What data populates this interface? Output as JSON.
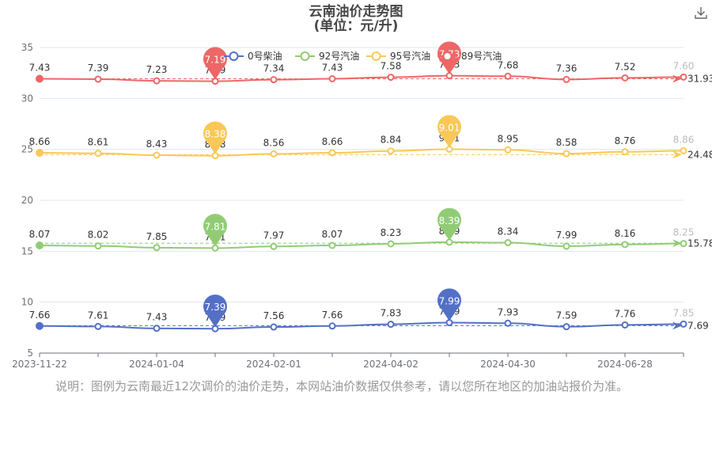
{
  "title": {
    "line1": "云南油价走势图",
    "line2": "(单位：元/升)"
  },
  "note": "说明：图例为云南最近12次调价的油价走势，本网站油价数据仅供参考，请以您所在地区的加油站报价为准。",
  "toolbox": {
    "icon": "download-icon"
  },
  "chart_data": {
    "type": "line",
    "x_tick_labels": [
      "2023-11-22",
      "2024-01-04",
      "2024-02-01",
      "2024-04-02",
      "2024-04-30",
      "2024-06-28"
    ],
    "ylim": [
      5,
      35
    ],
    "y_ticks": [
      5,
      10,
      15,
      20,
      25,
      30,
      35
    ],
    "legend_position": "top",
    "series": [
      {
        "name": "0号柴油",
        "color": "#5470c6",
        "values": [
          7.66,
          7.61,
          7.43,
          7.39,
          7.56,
          7.66,
          7.83,
          7.99,
          7.93,
          7.59,
          7.76,
          7.85
        ],
        "max": 7.99,
        "min": 7.39,
        "average": 7.69
      },
      {
        "name": "92号汽油",
        "color": "#91cc75",
        "values": [
          8.07,
          8.02,
          7.85,
          7.81,
          7.97,
          8.07,
          8.23,
          8.39,
          8.34,
          7.99,
          8.16,
          8.25
        ],
        "max": 8.39,
        "min": 7.81,
        "average": 15.78
      },
      {
        "name": "95号汽油",
        "color": "#fac858",
        "values": [
          8.66,
          8.61,
          8.43,
          8.38,
          8.56,
          8.66,
          8.84,
          9.01,
          8.95,
          8.58,
          8.76,
          8.86
        ],
        "max": 9.01,
        "min": 8.38,
        "average": 24.48
      },
      {
        "name": "89号汽油",
        "color": "#ee6666",
        "values": [
          7.43,
          7.39,
          7.23,
          7.19,
          7.34,
          7.43,
          7.58,
          7.73,
          7.68,
          7.36,
          7.52,
          7.6
        ],
        "max": 7.73,
        "min": 7.19,
        "average": 31.93
      }
    ]
  }
}
